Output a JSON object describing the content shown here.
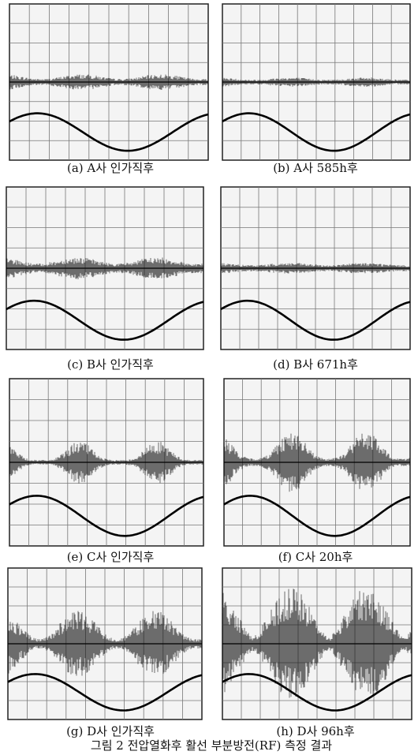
{
  "panels": [
    {
      "caption": "(a) A사 인가직후"
    },
    {
      "caption": "(b) A사 585h후"
    },
    {
      "caption": "(c) B사 인가직후"
    },
    {
      "caption": "(d) B사 671h후"
    },
    {
      "caption": "(e) C사 인가직후"
    },
    {
      "caption": "(f) C사 20h후"
    },
    {
      "caption": "(g) D사 인가직후"
    },
    {
      "caption": "(h) D사 96h후"
    }
  ],
  "figure_caption": "그림 2 전압열화후 활선 부분방전(RF) 측정 결과"
}
